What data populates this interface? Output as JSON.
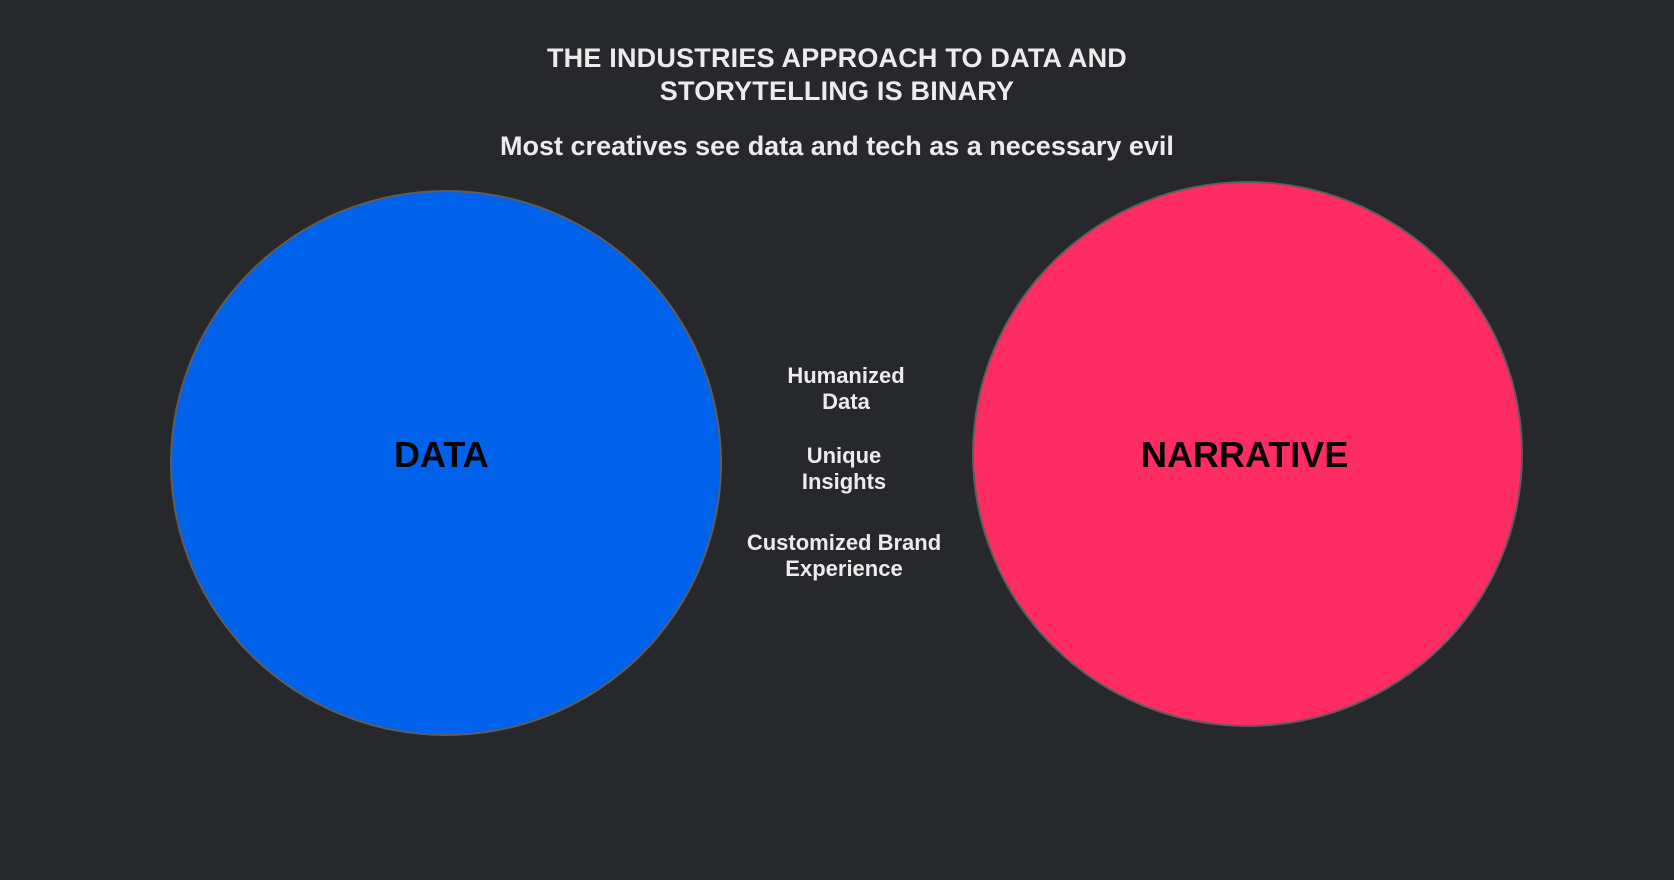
{
  "title": {
    "line1": "THE INDUSTRIES APPROACH TO DATA AND",
    "line2": "STORYTELLING IS BINARY"
  },
  "subtitle": "Most creatives see data and tech as a necessary evil",
  "circles": {
    "left": {
      "label": "DATA",
      "color": "#0062eb"
    },
    "right": {
      "label": "NARRATIVE",
      "color": "#ff2c63"
    }
  },
  "overlap_items": [
    {
      "line1": "Humanized",
      "line2": "Data"
    },
    {
      "line1": "Unique",
      "line2": "Insights"
    },
    {
      "line1": "Customized Brand",
      "line2": "Experience"
    }
  ],
  "colors": {
    "background": "#27282c",
    "text": "#ececec"
  }
}
